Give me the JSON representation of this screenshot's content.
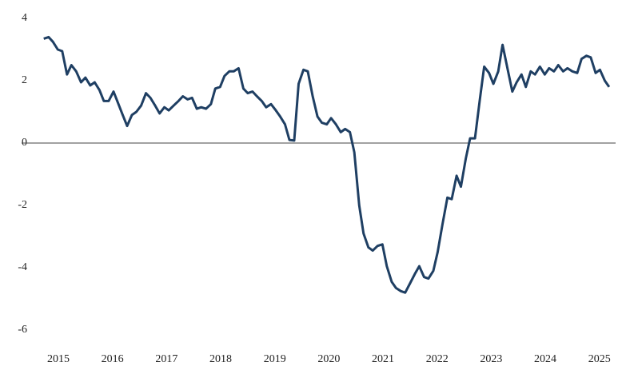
{
  "chart_data": {
    "type": "line",
    "x": [
      2014.73,
      2014.82,
      2014.9,
      2014.99,
      2015.07,
      2015.16,
      2015.24,
      2015.33,
      2015.42,
      2015.5,
      2015.59,
      2015.67,
      2015.76,
      2015.84,
      2015.93,
      2016.02,
      2016.1,
      2016.19,
      2016.27,
      2016.36,
      2016.44,
      2016.53,
      2016.62,
      2016.7,
      2016.79,
      2016.87,
      2016.96,
      2017.04,
      2017.13,
      2017.22,
      2017.3,
      2017.39,
      2017.47,
      2017.56,
      2017.64,
      2017.73,
      2017.82,
      2017.9,
      2017.99,
      2018.07,
      2018.16,
      2018.24,
      2018.33,
      2018.42,
      2018.5,
      2018.59,
      2018.67,
      2018.76,
      2018.84,
      2018.93,
      2019.02,
      2019.1,
      2019.19,
      2019.27,
      2019.36,
      2019.44,
      2019.53,
      2019.61,
      2019.7,
      2019.79,
      2019.87,
      2019.96,
      2020.04,
      2020.13,
      2020.22,
      2020.3,
      2020.39,
      2020.47,
      2020.56,
      2020.64,
      2020.73,
      2020.81,
      2020.9,
      2020.99,
      2021.07,
      2021.16,
      2021.24,
      2021.33,
      2021.41,
      2021.5,
      2021.59,
      2021.67,
      2021.76,
      2021.84,
      2021.93,
      2022.01,
      2022.1,
      2022.19,
      2022.27,
      2022.36,
      2022.44,
      2022.53,
      2022.61,
      2022.7,
      2022.79,
      2022.87,
      2022.96,
      2023.04,
      2023.13,
      2023.21,
      2023.3,
      2023.39,
      2023.47,
      2023.56,
      2023.64,
      2023.73,
      2023.81,
      2023.9,
      2023.99,
      2024.07,
      2024.16,
      2024.24,
      2024.33,
      2024.41,
      2024.5,
      2024.59,
      2024.67,
      2024.76,
      2024.84,
      2024.93,
      2025.01,
      2025.1,
      2025.18
    ],
    "series": [
      {
        "color": "#1f3f63",
        "values": [
          3.35,
          3.4,
          3.25,
          3.0,
          2.95,
          2.2,
          2.5,
          2.3,
          1.95,
          2.1,
          1.85,
          1.95,
          1.7,
          1.35,
          1.35,
          1.65,
          1.3,
          0.9,
          0.55,
          0.9,
          1.0,
          1.2,
          1.6,
          1.45,
          1.2,
          0.95,
          1.15,
          1.05,
          1.2,
          1.35,
          1.5,
          1.4,
          1.45,
          1.1,
          1.15,
          1.1,
          1.25,
          1.75,
          1.8,
          2.15,
          2.3,
          2.3,
          2.4,
          1.75,
          1.6,
          1.65,
          1.5,
          1.35,
          1.15,
          1.25,
          1.05,
          0.85,
          0.6,
          0.1,
          0.08,
          1.9,
          2.35,
          2.3,
          1.5,
          0.85,
          0.65,
          0.6,
          0.8,
          0.6,
          0.35,
          0.45,
          0.35,
          -0.3,
          -2.0,
          -2.9,
          -3.35,
          -3.45,
          -3.3,
          -3.25,
          -3.95,
          -4.45,
          -4.65,
          -4.75,
          -4.8,
          -4.5,
          -4.2,
          -3.95,
          -4.3,
          -4.35,
          -4.1,
          -3.5,
          -2.6,
          -1.75,
          -1.8,
          -1.05,
          -1.4,
          -0.5,
          0.15,
          0.15,
          1.4,
          2.45,
          2.25,
          1.9,
          2.3,
          3.15,
          2.4,
          1.65,
          1.95,
          2.2,
          1.8,
          2.3,
          2.2,
          2.45,
          2.2,
          2.4,
          2.3,
          2.5,
          2.3,
          2.4,
          2.3,
          2.25,
          2.7,
          2.8,
          2.75,
          2.25,
          2.35,
          2.0,
          1.8
        ]
      }
    ],
    "xlim": [
      2014.32,
      2025.3
    ],
    "xticks": [
      2015,
      2016,
      2017,
      2018,
      2019,
      2020,
      2021,
      2022,
      2023,
      2024,
      2025
    ],
    "ylim": [
      -6.5,
      4.5
    ],
    "yticks": [
      4,
      2,
      0,
      -2,
      -4,
      -6
    ]
  }
}
